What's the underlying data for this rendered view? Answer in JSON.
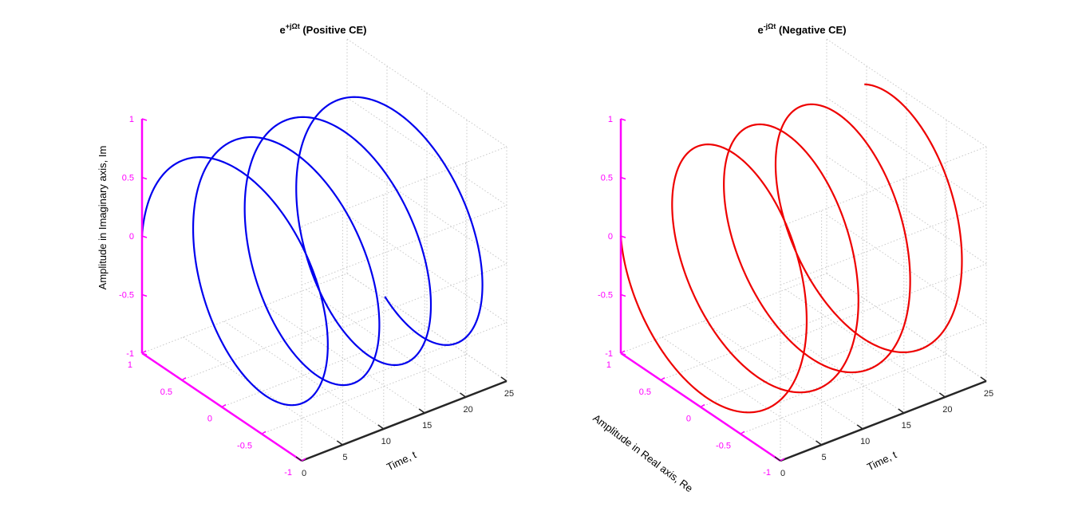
{
  "chart_data": [
    {
      "type": "line",
      "projection": "3d",
      "title_base": "e",
      "title_exponent": "+jΩt",
      "title_suffix": " (Positive CE)",
      "xlabel": "",
      "ylabel": "Time, t",
      "zlabel": "Amplitude in Imaginary axis, Im",
      "xlim": [
        -1,
        1
      ],
      "ylim": [
        0,
        25
      ],
      "zlim": [
        -1,
        1
      ],
      "x_ticks": [
        "1",
        "0.5",
        "0",
        "-0.5",
        "-1"
      ],
      "y_ticks": [
        "0",
        "5",
        "10",
        "15",
        "20",
        "25"
      ],
      "z_ticks": [
        "1",
        "0.5",
        "0",
        "-0.5",
        "-1"
      ],
      "grid": true,
      "series": [
        {
          "expression": "x = cos(t), y = t, z = sin(t)",
          "t_range": [
            0,
            24
          ],
          "omega": 1,
          "color": "#0000ee"
        }
      ]
    },
    {
      "type": "line",
      "projection": "3d",
      "title_base": "e",
      "title_exponent": "-jΩt",
      "title_suffix": " (Negative CE)",
      "xlabel": "Amplitude in Real axis, Re",
      "ylabel": "Time, t",
      "zlabel": "",
      "xlim": [
        -1,
        1
      ],
      "ylim": [
        0,
        25
      ],
      "zlim": [
        -1,
        1
      ],
      "x_ticks": [
        "1",
        "0.5",
        "0",
        "-0.5",
        "-1"
      ],
      "y_ticks": [
        "0",
        "5",
        "10",
        "15",
        "20",
        "25"
      ],
      "z_ticks": [
        "1",
        "0.5",
        "0",
        "-0.5",
        "-1"
      ],
      "grid": true,
      "series": [
        {
          "expression": "x = cos(t), y = t, z = -sin(t)",
          "t_range": [
            0,
            24
          ],
          "omega": 1,
          "color": "#ee0000"
        }
      ]
    }
  ],
  "colors": {
    "axis_dark": "#262626",
    "axis_accent": "#ff00ff",
    "grid": "#c8c8c8"
  }
}
